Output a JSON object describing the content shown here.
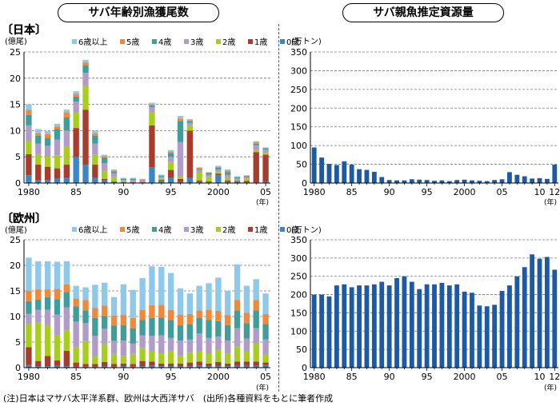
{
  "headers": {
    "left_title": "サバ年齢別漁獲尾数",
    "right_title": "サバ親魚推定資源量"
  },
  "footer": "(注)日本はマサバ太平洋系群、欧州は大西洋サバ　(出所)各種資料をもとに筆者作成",
  "colors": {
    "6歳以上": "#8ec8ea",
    "5歳": "#f08a3a",
    "4歳": "#3f9e9a",
    "3歳": "#b09bc9",
    "2歳": "#a8cd1e",
    "1歳": "#a83d2e",
    "0歳": "#3b86c4",
    "biomass": "#1c5aa5"
  },
  "chart_data": [
    {
      "id": "catch_japan",
      "type": "bar",
      "stacked": true,
      "region_label": "〔日本〕",
      "ylabel": "(億尾)",
      "xlabel": "(年)",
      "ylim": [
        0,
        25
      ],
      "yticks": [
        0,
        5,
        10,
        15,
        20,
        25
      ],
      "x": [
        1980,
        1981,
        1982,
        1983,
        1984,
        1985,
        1986,
        1987,
        1988,
        1989,
        1990,
        1991,
        1992,
        1993,
        1994,
        1995,
        1996,
        1997,
        1998,
        1999,
        2000,
        2001,
        2002,
        2003,
        2004,
        2005
      ],
      "xtick_labels": {
        "1980": "1980",
        "1985": "85",
        "1990": "90",
        "1995": "95",
        "2000": "2000",
        "2005": "05"
      },
      "legend": [
        "6歳以上",
        "5歳",
        "4歳",
        "3歳",
        "2歳",
        "1歳",
        "0歳"
      ],
      "series": [
        {
          "name": "0歳",
          "values": [
            1.5,
            0.5,
            0.6,
            0.8,
            1.0,
            5.0,
            3.5,
            1.0,
            0.5,
            0.2,
            0.1,
            0.1,
            0.1,
            3.0,
            0.4,
            1.0,
            0.3,
            1.0,
            0.2,
            0.1,
            1.5,
            0.2,
            0.2,
            0.1,
            0.1,
            0.2
          ]
        },
        {
          "name": "1歳",
          "values": [
            4.0,
            3.0,
            2.5,
            2.0,
            2.5,
            5.5,
            10.5,
            2.5,
            0.3,
            0.1,
            0.1,
            0.1,
            0.1,
            8.0,
            0.2,
            1.5,
            0.5,
            9.0,
            0.3,
            0.2,
            0.3,
            0.3,
            0.2,
            0.3,
            5.8,
            5.2
          ]
        },
        {
          "name": "2歳",
          "values": [
            2.5,
            2.0,
            2.0,
            2.5,
            3.5,
            3.0,
            4.5,
            2.0,
            1.5,
            0.8,
            0.2,
            0.1,
            0.1,
            2.5,
            0.2,
            1.5,
            0.5,
            1.0,
            1.5,
            0.8,
            0.3,
            0.5,
            0.2,
            0.4,
            0.5,
            0.4
          ]
        },
        {
          "name": "3歳",
          "values": [
            3.0,
            2.0,
            2.0,
            3.0,
            3.0,
            2.0,
            2.5,
            2.0,
            1.5,
            0.8,
            0.2,
            0.3,
            0.2,
            1.0,
            0.4,
            1.0,
            6.5,
            0.5,
            0.5,
            0.5,
            0.5,
            0.6,
            0.3,
            0.3,
            0.8,
            0.6
          ]
        },
        {
          "name": "4歳",
          "values": [
            2.0,
            1.5,
            1.5,
            2.0,
            2.5,
            1.0,
            1.5,
            1.5,
            1.0,
            0.3,
            0.2,
            0.2,
            0.1,
            0.3,
            0.2,
            0.7,
            4.0,
            0.3,
            0.2,
            0.3,
            0.3,
            0.5,
            0.2,
            0.2,
            0.3,
            0.2
          ]
        },
        {
          "name": "5歳",
          "values": [
            1.0,
            0.5,
            0.7,
            0.5,
            1.0,
            0.5,
            0.5,
            0.5,
            0.3,
            0.2,
            0.1,
            0.1,
            0.1,
            0.2,
            0.1,
            0.3,
            0.5,
            0.2,
            0.2,
            0.1,
            0.2,
            0.3,
            0.1,
            0.1,
            0.3,
            0.1
          ]
        },
        {
          "name": "6歳以上",
          "values": [
            1.0,
            0.8,
            0.6,
            0.5,
            0.5,
            0.5,
            0.5,
            0.5,
            0.3,
            0.2,
            0.1,
            0.1,
            0.1,
            0.3,
            0.1,
            0.3,
            0.5,
            0.2,
            0.1,
            0.1,
            0.2,
            0.2,
            0.1,
            0.1,
            0.2,
            0.1
          ]
        }
      ]
    },
    {
      "id": "biomass_japan",
      "type": "bar",
      "region_label": "〔日本〕",
      "ylabel": "(万トン)",
      "xlabel": "(年)",
      "ylim": [
        0,
        350
      ],
      "yticks": [
        0,
        50,
        100,
        150,
        200,
        250,
        300,
        350
      ],
      "x": [
        1980,
        1981,
        1982,
        1983,
        1984,
        1985,
        1986,
        1987,
        1988,
        1989,
        1990,
        1991,
        1992,
        1993,
        1994,
        1995,
        1996,
        1997,
        1998,
        1999,
        2000,
        2001,
        2002,
        2003,
        2004,
        2005,
        2006,
        2007,
        2008,
        2009,
        2010,
        2011,
        2012
      ],
      "xtick_labels": {
        "1980": "1980",
        "1985": "85",
        "1990": "90",
        "1995": "95",
        "2000": "2000",
        "2005": "05",
        "2010": "10",
        "2012": "12"
      },
      "series": [
        {
          "name": "",
          "values": [
            95,
            68,
            51,
            48,
            58,
            49,
            37,
            35,
            30,
            16,
            8,
            7,
            7,
            10,
            9,
            8,
            6,
            7,
            5,
            8,
            9,
            7,
            6,
            5,
            8,
            10,
            29,
            22,
            18,
            12,
            13,
            11,
            49
          ]
        }
      ]
    },
    {
      "id": "catch_europe",
      "type": "bar",
      "stacked": true,
      "region_label": "〔欧州〕",
      "ylabel": "(億尾)",
      "xlabel": "(年)",
      "ylim": [
        0,
        25
      ],
      "yticks": [
        0,
        5,
        10,
        15,
        20,
        25
      ],
      "x": [
        1980,
        1981,
        1982,
        1983,
        1984,
        1985,
        1986,
        1987,
        1988,
        1989,
        1990,
        1991,
        1992,
        1993,
        1994,
        1995,
        1996,
        1997,
        1998,
        1999,
        2000,
        2001,
        2002,
        2003,
        2004,
        2005
      ],
      "xtick_labels": {
        "1980": "1980",
        "1985": "85",
        "1990": "90",
        "1995": "95",
        "2000": "2000",
        "2005": "05"
      },
      "legend": [
        "6歳以上",
        "5歳",
        "4歳",
        "3歳",
        "2歳",
        "1歳",
        "0歳"
      ],
      "series": [
        {
          "name": "0歳",
          "values": [
            0.5,
            0.3,
            0.3,
            0.4,
            0.3,
            0.2,
            0.2,
            0.2,
            0.3,
            0.2,
            0.3,
            0.2,
            0.3,
            0.4,
            0.3,
            0.3,
            0.3,
            0.3,
            0.4,
            0.3,
            0.3,
            0.3,
            0.4,
            0.4,
            0.4,
            0.5
          ]
        },
        {
          "name": "1歳",
          "values": [
            3.5,
            1.0,
            2.0,
            1.0,
            3.0,
            0.8,
            0.5,
            0.5,
            0.8,
            0.5,
            0.5,
            0.5,
            1.0,
            0.8,
            0.5,
            0.5,
            0.5,
            0.7,
            0.8,
            0.5,
            0.8,
            0.5,
            0.8,
            0.8,
            0.8,
            0.5
          ]
        },
        {
          "name": "2歳",
          "values": [
            4.5,
            7.5,
            6.0,
            5.0,
            4.0,
            3.0,
            4.5,
            1.5,
            3.5,
            2.0,
            1.5,
            2.0,
            2.5,
            2.0,
            2.0,
            2.5,
            1.5,
            2.0,
            2.0,
            2.0,
            2.5,
            2.0,
            3.0,
            2.0,
            3.5,
            1.5
          ]
        },
        {
          "name": "3歳",
          "values": [
            2.0,
            2.5,
            3.0,
            4.0,
            4.5,
            5.0,
            3.5,
            4.0,
            3.0,
            2.5,
            3.0,
            2.0,
            2.5,
            3.0,
            3.5,
            2.5,
            3.0,
            2.5,
            3.5,
            3.0,
            2.5,
            2.5,
            3.5,
            2.5,
            3.0,
            3.0
          ]
        },
        {
          "name": "4歳",
          "values": [
            2.5,
            2.0,
            2.5,
            3.0,
            3.0,
            3.0,
            2.5,
            3.5,
            2.5,
            3.0,
            3.0,
            3.0,
            3.0,
            3.5,
            3.5,
            3.5,
            3.0,
            3.0,
            3.0,
            3.5,
            3.0,
            3.0,
            3.5,
            3.0,
            3.5,
            3.0
          ]
        },
        {
          "name": "5歳",
          "values": [
            2.0,
            2.0,
            1.5,
            2.0,
            1.5,
            1.5,
            2.0,
            2.0,
            2.0,
            2.0,
            2.0,
            2.0,
            2.0,
            2.5,
            2.5,
            2.0,
            2.0,
            2.0,
            1.5,
            2.0,
            2.0,
            2.0,
            2.0,
            2.0,
            2.0,
            2.0
          ]
        },
        {
          "name": "6歳以上",
          "values": [
            6.5,
            5.5,
            5.5,
            5.3,
            4.5,
            2.5,
            2.5,
            4.5,
            4.5,
            3.6,
            6.0,
            5.5,
            6.2,
            7.6,
            7.4,
            7.2,
            5.2,
            4.0,
            4.8,
            5.2,
            6.5,
            4.7,
            7.0,
            5.3,
            4.1,
            4.0
          ]
        }
      ]
    },
    {
      "id": "biomass_europe",
      "type": "bar",
      "region_label": "〔欧州〕",
      "ylabel": "(万トン)",
      "xlabel": "(年)",
      "ylim": [
        0,
        350
      ],
      "yticks": [
        0,
        50,
        100,
        150,
        200,
        250,
        300,
        350
      ],
      "x": [
        1980,
        1981,
        1982,
        1983,
        1984,
        1985,
        1986,
        1987,
        1988,
        1989,
        1990,
        1991,
        1992,
        1993,
        1994,
        1995,
        1996,
        1997,
        1998,
        1999,
        2000,
        2001,
        2002,
        2003,
        2004,
        2005,
        2006,
        2007,
        2008,
        2009,
        2010,
        2011,
        2012
      ],
      "xtick_labels": {
        "1980": "1980",
        "1985": "85",
        "1990": "90",
        "1995": "95",
        "2000": "2000",
        "2005": "05",
        "2010": "10",
        "2012": "12"
      },
      "series": [
        {
          "name": "",
          "values": [
            200,
            200,
            195,
            225,
            228,
            220,
            225,
            225,
            228,
            235,
            225,
            245,
            250,
            235,
            215,
            228,
            228,
            232,
            225,
            228,
            208,
            205,
            170,
            168,
            172,
            210,
            225,
            250,
            275,
            310,
            298,
            303,
            268
          ]
        }
      ]
    }
  ]
}
